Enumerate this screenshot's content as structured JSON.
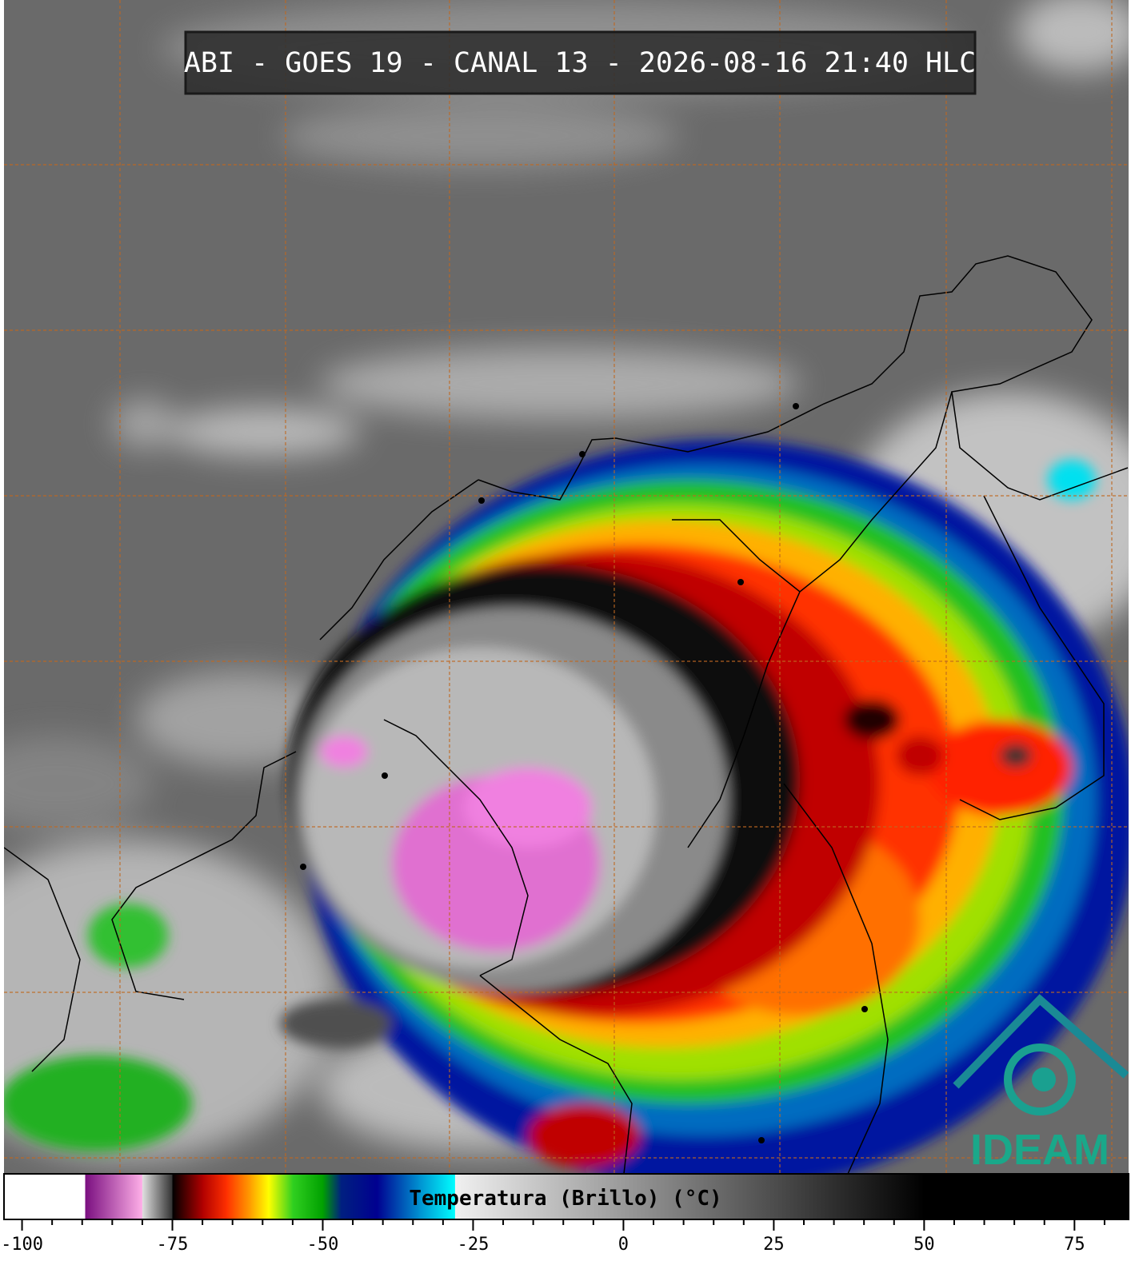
{
  "title": "ABI - GOES 19 - CANAL 13 - 2026-08-16 21:40 HLC",
  "logo": "IDEAM",
  "colorbar": {
    "label": "Temperatura (Brillo) (°C)",
    "xlim": [
      -103,
      84
    ],
    "xticks": [
      -100,
      -75,
      -50,
      -25,
      0,
      25,
      50,
      75
    ],
    "minor_xticks": [
      -95,
      -90,
      -85,
      -80,
      -70,
      -65,
      -60,
      -55,
      -45,
      -40,
      -35,
      -30,
      -20,
      -15,
      -10,
      -5,
      5,
      10,
      15,
      20,
      30,
      35,
      40,
      45,
      55,
      60,
      65,
      70,
      80
    ],
    "stops": [
      {
        "value": -103,
        "color": "#ffffff"
      },
      {
        "value": -89.5,
        "color": "#ffffff"
      },
      {
        "value": -89.5,
        "color": "#7a0f80"
      },
      {
        "value": -80,
        "color": "#ffb0e8"
      },
      {
        "value": -80,
        "color": "#e0e0e0"
      },
      {
        "value": -75,
        "color": "#303030"
      },
      {
        "value": -75,
        "color": "#000000"
      },
      {
        "value": -70,
        "color": "#b00000"
      },
      {
        "value": -66,
        "color": "#ff3000"
      },
      {
        "value": -62,
        "color": "#ffa000"
      },
      {
        "value": -59,
        "color": "#ffff00"
      },
      {
        "value": -55,
        "color": "#30d020"
      },
      {
        "value": -50,
        "color": "#00a000"
      },
      {
        "value": -47,
        "color": "#002080"
      },
      {
        "value": -41,
        "color": "#000090"
      },
      {
        "value": -34,
        "color": "#0090d0"
      },
      {
        "value": -28,
        "color": "#00ffff"
      },
      {
        "value": -28,
        "color": "#f0f0f0"
      },
      {
        "value": 50,
        "color": "#000000"
      },
      {
        "value": 84,
        "color": "#000000"
      }
    ]
  }
}
